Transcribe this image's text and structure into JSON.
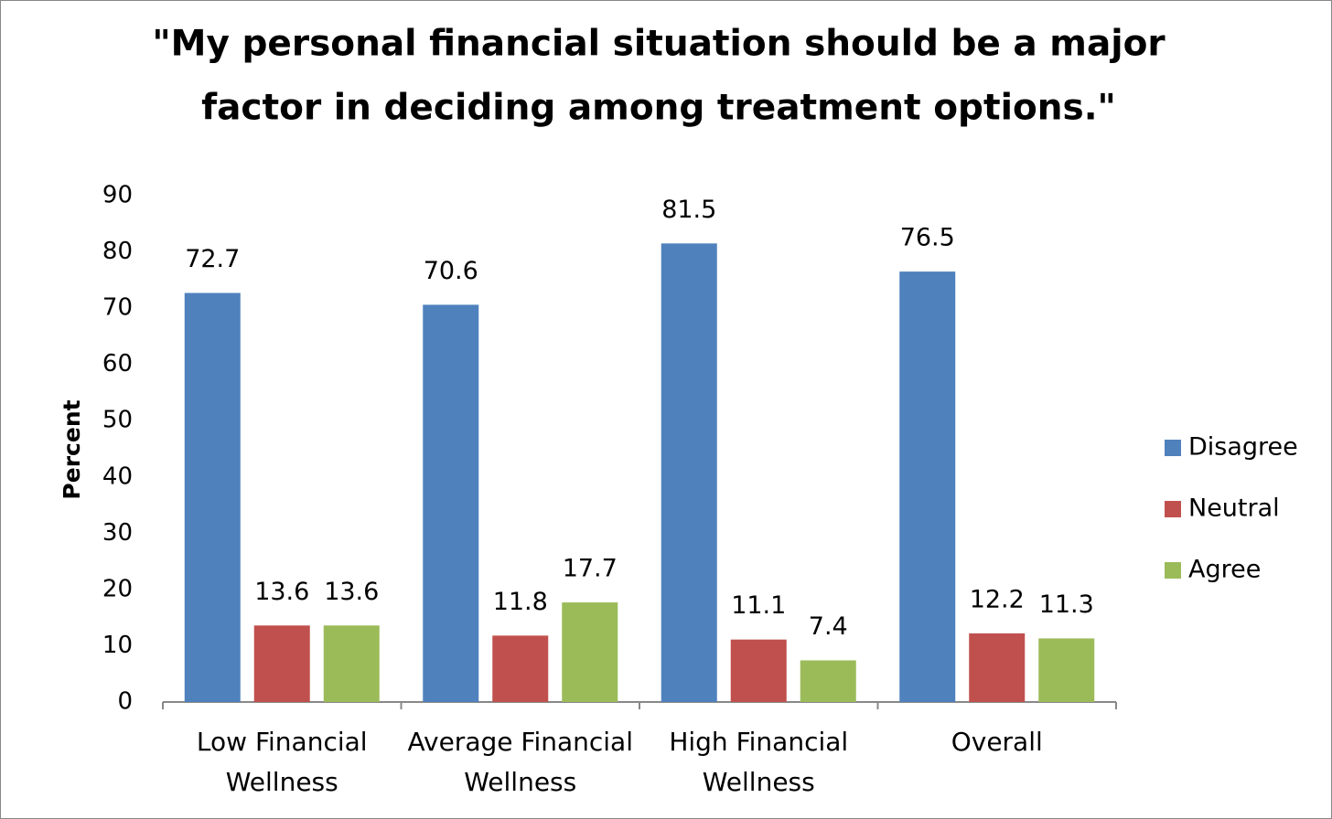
{
  "chart_data": {
    "type": "bar",
    "title": [
      "\"My personal financial situation should be a major",
      "factor in deciding among treatment options.\""
    ],
    "y_label": "Percent",
    "categories": [
      "Low Financial Wellness",
      "Average Financial Wellness",
      "High Financial Wellness",
      "Overall"
    ],
    "series": [
      {
        "name": "Disagree",
        "color": "#4f81bd",
        "values": [
          72.7,
          70.6,
          81.5,
          76.5
        ]
      },
      {
        "name": "Neutral",
        "color": "#c0504d",
        "values": [
          13.6,
          11.8,
          11.1,
          12.2
        ]
      },
      {
        "name": "Agree",
        "color": "#9bbb59",
        "values": [
          13.6,
          17.7,
          7.4,
          11.3
        ]
      }
    ],
    "ylim": [
      0,
      90
    ],
    "yticks": [
      0,
      10,
      20,
      30,
      40,
      50,
      60,
      70,
      80,
      90
    ],
    "grid": false,
    "legend": "right"
  }
}
